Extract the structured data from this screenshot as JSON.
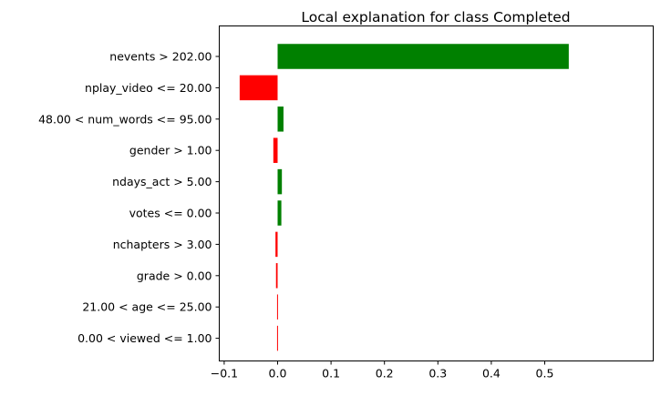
{
  "chart_data": {
    "type": "bar",
    "orientation": "horizontal",
    "title": "Local explanation for class Completed",
    "xlabel": "",
    "ylabel": "",
    "xlim": [
      -0.1,
      0.55
    ],
    "xticks": [
      -0.1,
      0.0,
      0.1,
      0.2,
      0.3,
      0.4,
      0.5
    ],
    "xtick_labels": [
      "−0.1",
      "0.0",
      "0.1",
      "0.2",
      "0.3",
      "0.4",
      "0.5"
    ],
    "grid": false,
    "categories": [
      "nevents > 202.00",
      "nplay_video <= 20.00",
      "48.00 < num_words <= 95.00",
      "gender > 1.00",
      "ndays_act > 5.00",
      "votes <= 0.00",
      "nchapters > 3.00",
      "grade > 0.00",
      "21.00 < age <= 25.00",
      "0.00 < viewed <= 1.00"
    ],
    "values": [
      0.545,
      -0.071,
      0.011,
      -0.008,
      0.008,
      0.007,
      -0.004,
      -0.003,
      -0.001,
      -0.001
    ],
    "colors": {
      "positive": "#008000",
      "negative": "#ff0000"
    }
  }
}
